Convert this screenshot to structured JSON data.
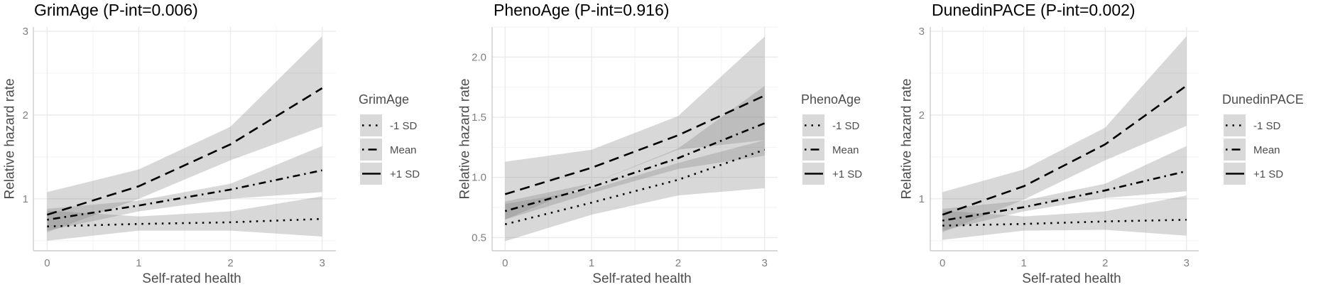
{
  "chart_data": [
    {
      "type": "line",
      "title": "GrimAge (P-int=0.006)",
      "xlabel": "Self-rated health",
      "ylabel": "Relative hazard rate",
      "x": [
        0,
        1,
        2,
        3
      ],
      "xticks": [
        "0",
        "1",
        "2",
        "3"
      ],
      "xlim": [
        -0.15,
        3.15
      ],
      "yticks": [
        1,
        2,
        3
      ],
      "ytick_labels": [
        "1",
        "2",
        "3"
      ],
      "ylim": [
        0.38,
        3.05
      ],
      "grid": true,
      "legend": {
        "title": "GrimAge",
        "placement": "right",
        "entries": [
          "-1 SD",
          "Mean",
          "+1 SD"
        ]
      },
      "series": [
        {
          "name": "-1 SD",
          "linestyle": "dotted",
          "values": [
            0.67,
            0.7,
            0.72,
            0.76
          ],
          "ci_lower": [
            0.5,
            0.62,
            0.62,
            0.55
          ],
          "ci_upper": [
            0.86,
            0.79,
            0.85,
            1.03
          ]
        },
        {
          "name": "Mean",
          "linestyle": "dotdash",
          "values": [
            0.75,
            0.92,
            1.11,
            1.34
          ],
          "ci_lower": [
            0.62,
            0.85,
            1.0,
            1.08
          ],
          "ci_upper": [
            0.88,
            0.98,
            1.18,
            1.63
          ]
        },
        {
          "name": "+1 SD",
          "linestyle": "dashed",
          "values": [
            0.81,
            1.15,
            1.65,
            2.32
          ],
          "ci_lower": [
            0.6,
            1.0,
            1.46,
            1.86
          ],
          "ci_upper": [
            1.08,
            1.35,
            1.86,
            2.94
          ]
        }
      ]
    },
    {
      "type": "line",
      "title": "PhenoAge (P-int=0.916)",
      "xlabel": "Self-rated health",
      "ylabel": "Relative hazard rate",
      "x": [
        0,
        1,
        2,
        3
      ],
      "xticks": [
        "0",
        "1",
        "2",
        "3"
      ],
      "xlim": [
        -0.15,
        3.15
      ],
      "yticks": [
        0.5,
        1.0,
        1.5,
        2.0
      ],
      "ytick_labels": [
        "0.5",
        "1.0",
        "1.5",
        "2.0"
      ],
      "ylim": [
        0.39,
        2.25
      ],
      "grid": true,
      "legend": {
        "title": "PhenoAge",
        "placement": "right",
        "entries": [
          "-1 SD",
          "Mean",
          "+1 SD"
        ]
      },
      "series": [
        {
          "name": "-1 SD",
          "linestyle": "dotted",
          "values": [
            0.61,
            0.79,
            0.98,
            1.23
          ],
          "ci_lower": [
            0.47,
            0.69,
            0.85,
            0.91
          ],
          "ci_upper": [
            0.78,
            0.9,
            1.12,
            1.31
          ]
        },
        {
          "name": "Mean",
          "linestyle": "dotdash",
          "values": [
            0.72,
            0.92,
            1.16,
            1.45
          ],
          "ci_lower": [
            0.65,
            0.87,
            1.07,
            1.18
          ],
          "ci_upper": [
            0.8,
            0.95,
            1.24,
            1.76
          ]
        },
        {
          "name": "+1 SD",
          "linestyle": "dashed",
          "values": [
            0.86,
            1.08,
            1.35,
            1.68
          ],
          "ci_lower": [
            0.65,
            0.95,
            1.23,
            1.31
          ],
          "ci_upper": [
            1.13,
            1.23,
            1.51,
            2.17
          ]
        }
      ]
    },
    {
      "type": "line",
      "title": "DunedinPACE (P-int=0.002)",
      "xlabel": "Self-rated health",
      "ylabel": "Relative hazard rate",
      "x": [
        0,
        1,
        2,
        3
      ],
      "xticks": [
        "0",
        "1",
        "2",
        "3"
      ],
      "xlim": [
        -0.15,
        3.15
      ],
      "yticks": [
        1,
        2,
        3
      ],
      "ytick_labels": [
        "1",
        "2",
        "3"
      ],
      "ylim": [
        0.38,
        3.05
      ],
      "grid": true,
      "legend": {
        "title": "DunedinPACE",
        "placement": "right",
        "entries": [
          "-1 SD",
          "Mean",
          "+1 SD"
        ]
      },
      "series": [
        {
          "name": "-1 SD",
          "linestyle": "dotted",
          "values": [
            0.68,
            0.7,
            0.73,
            0.75
          ],
          "ci_lower": [
            0.51,
            0.62,
            0.63,
            0.56
          ],
          "ci_upper": [
            0.86,
            0.79,
            0.85,
            1.04
          ]
        },
        {
          "name": "Mean",
          "linestyle": "dotdash",
          "values": [
            0.74,
            0.9,
            1.1,
            1.33
          ],
          "ci_lower": [
            0.62,
            0.85,
            1.01,
            1.09
          ],
          "ci_upper": [
            0.88,
            0.98,
            1.18,
            1.63
          ]
        },
        {
          "name": "+1 SD",
          "linestyle": "dashed",
          "values": [
            0.81,
            1.15,
            1.65,
            2.35
          ],
          "ci_lower": [
            0.6,
            0.99,
            1.46,
            1.87
          ],
          "ci_upper": [
            1.08,
            1.35,
            1.85,
            2.94
          ]
        }
      ]
    }
  ]
}
